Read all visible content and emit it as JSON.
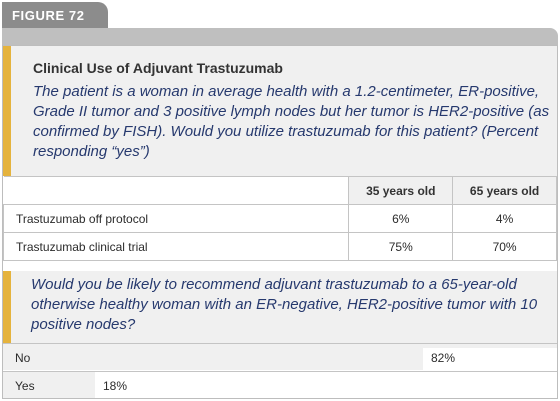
{
  "figure": {
    "tab_label": "FIGURE 72",
    "title": "Clinical Use of Adjuvant Trastuzumab"
  },
  "question1": "The patient is a woman in average health with a 1.2-centimeter, ER-positive, Grade II tumor and 3 positive lymph nodes but her tumor is HER2-positive (as confirmed by FISH). Would you utilize trastuzumab for this patient? (Percent responding “yes”)",
  "table": {
    "columns": [
      "35 years old",
      "65 years old"
    ],
    "rows": [
      {
        "label": "Trastuzumab off protocol",
        "values": [
          "6%",
          "4%"
        ]
      },
      {
        "label": "Trastuzumab clinical trial",
        "values": [
          "75%",
          "70%"
        ]
      }
    ]
  },
  "question2": "Would you be likely to recommend adjuvant trastuzumab to a 65-year-old otherwise healthy woman with an ER-negative, HER2-positive tumor with 10 positive nodes?",
  "responses": [
    {
      "label": "No",
      "value_text": "82%",
      "fraction": 0.82
    },
    {
      "label": "Yes",
      "value_text": "18%",
      "fraction": 0.18
    }
  ],
  "colors": {
    "accent": "#e5b33d",
    "question_text": "#26396e",
    "tab": "#8c8c8c",
    "panel": "#f0f0f0"
  }
}
